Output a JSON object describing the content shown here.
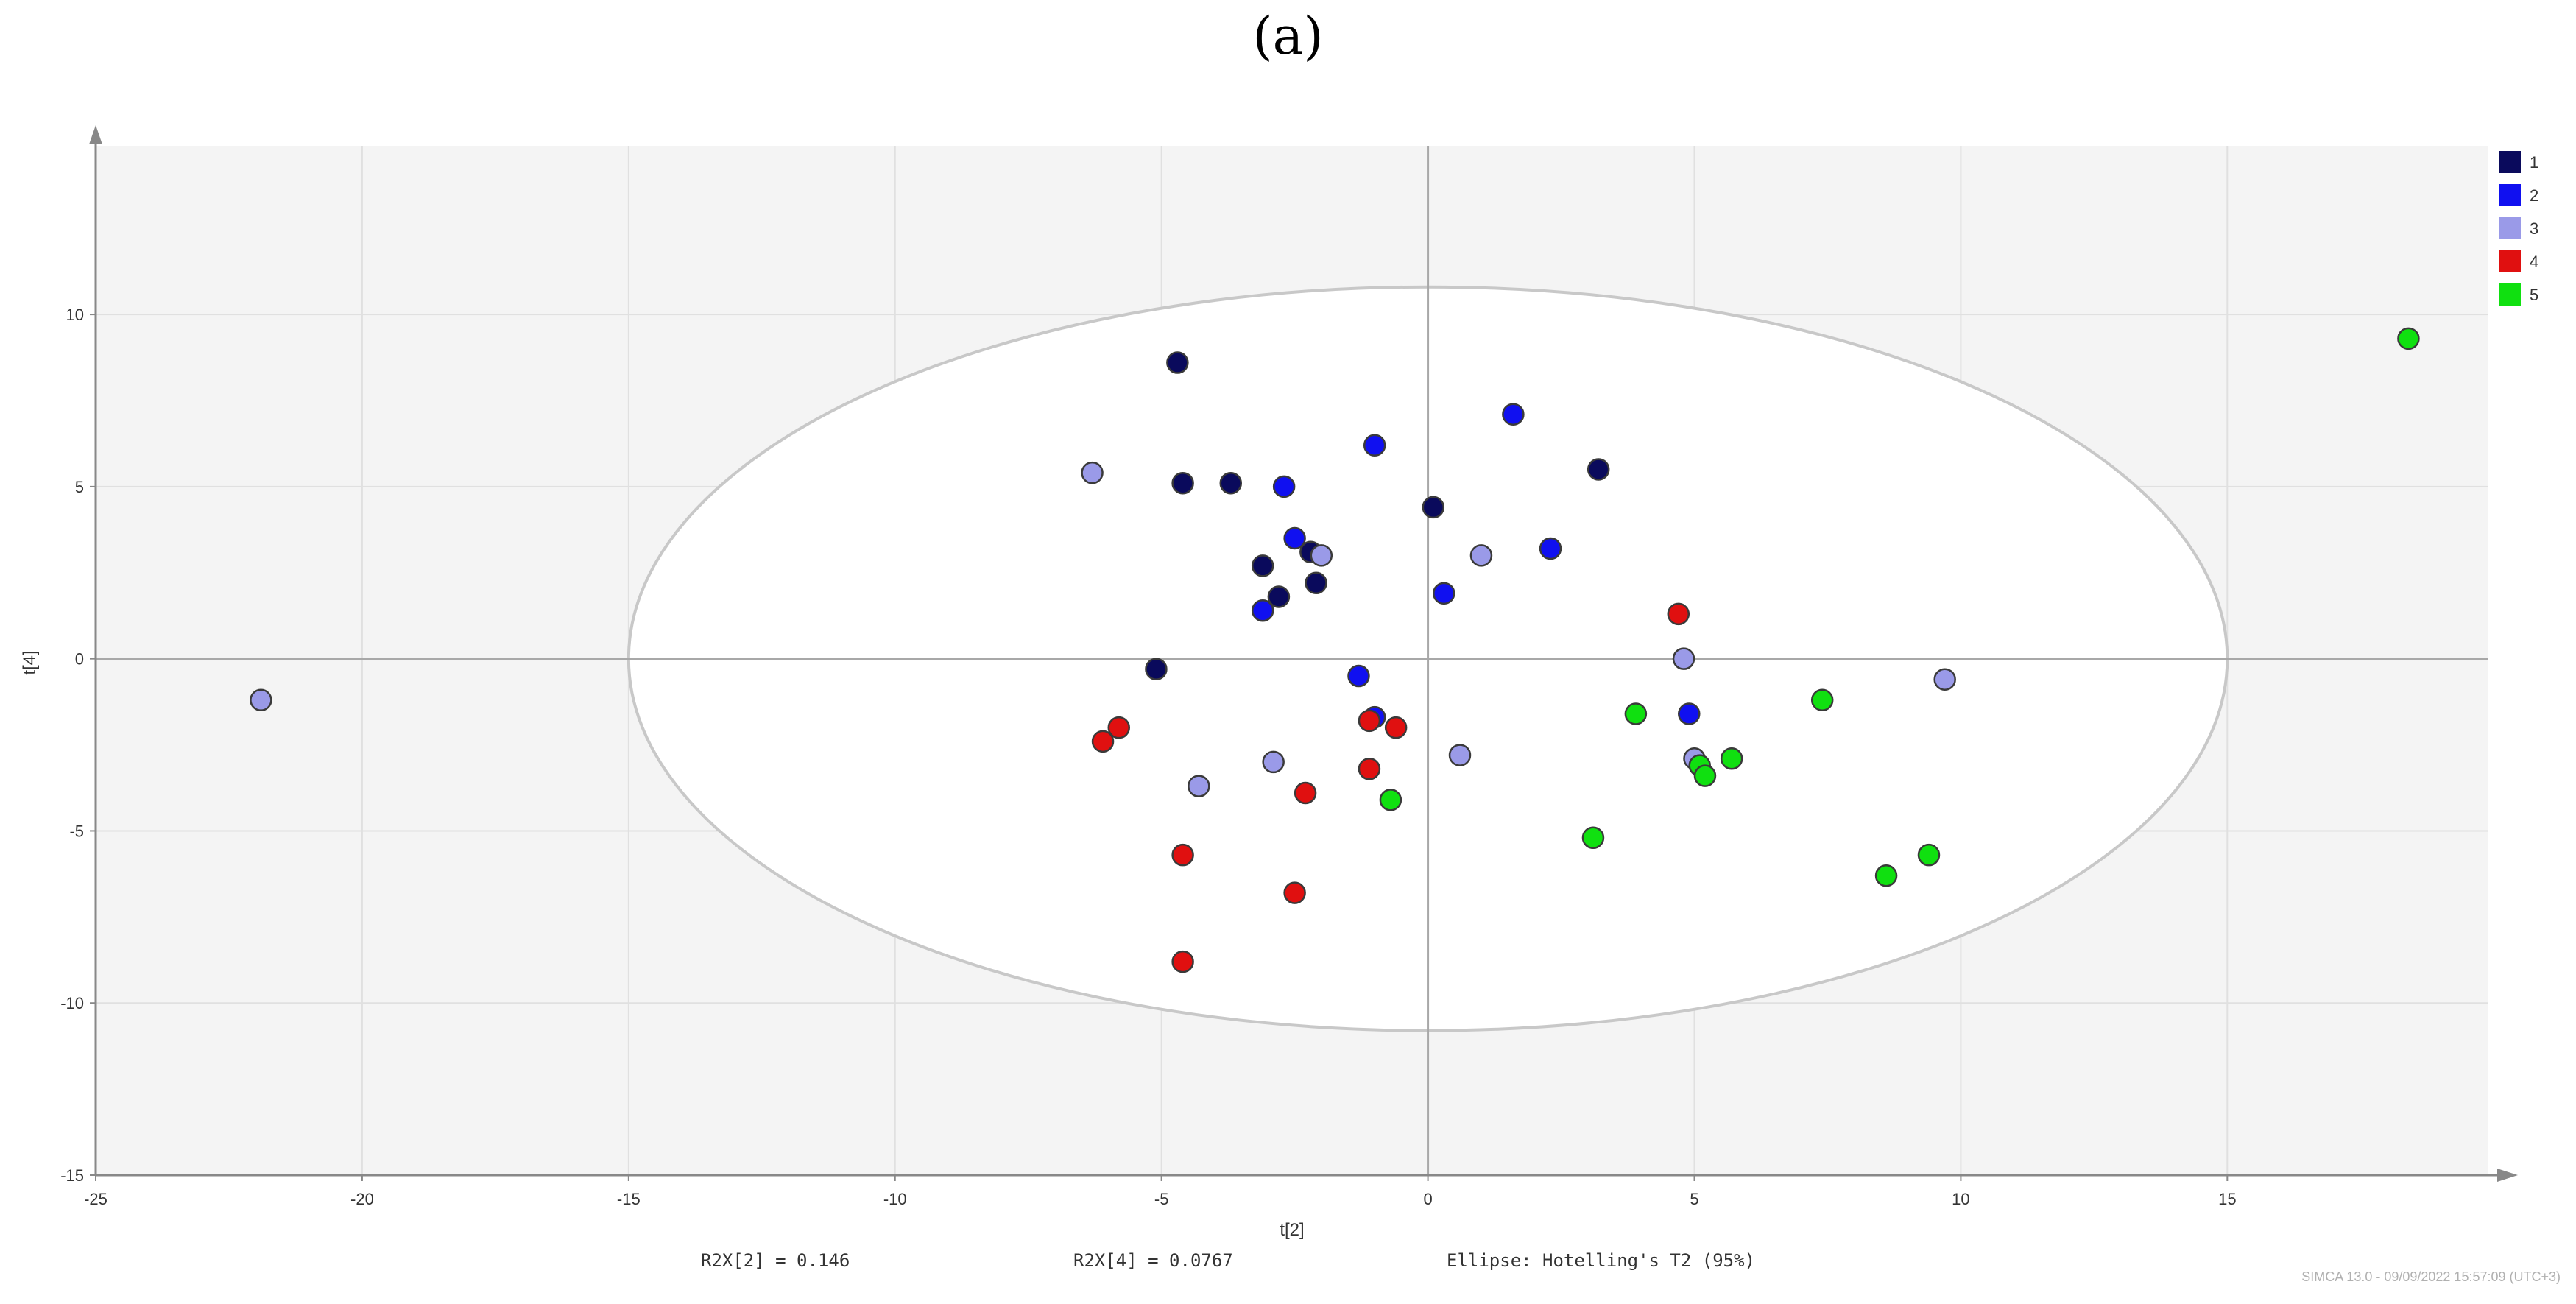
{
  "figure_label": "(a)",
  "chart_data": {
    "type": "scatter",
    "xlabel": "t[2]",
    "ylabel": "t[4]",
    "xlim": [
      -25,
      19.9
    ],
    "ylim": [
      -15,
      14.9
    ],
    "xticks": [
      -25,
      -20,
      -15,
      -10,
      -5,
      0,
      5,
      10,
      15
    ],
    "yticks": [
      -15,
      -10,
      -5,
      0,
      5,
      10
    ],
    "grid": true,
    "legend_position": "top-right",
    "ellipse": {
      "label": "Ellipse: Hotelling's T2 (95%)",
      "center": [
        0,
        0
      ],
      "rx": 15,
      "ry": 10.8
    },
    "stats": [
      "R2X[2] = 0.146",
      "R2X[4] = 0.0767",
      "Ellipse: Hotelling's T2 (95%)"
    ],
    "footer": "SIMCA 13.0 - 09/09/2022 15:57:09 (UTC+3)",
    "series": [
      {
        "name": "1",
        "color": "#0a0a5c",
        "points": [
          [
            -4.7,
            8.6
          ],
          [
            -4.6,
            5.1
          ],
          [
            -3.7,
            5.1
          ],
          [
            -3.1,
            2.7
          ],
          [
            -2.8,
            1.8
          ],
          [
            -2.2,
            3.1
          ],
          [
            -2.1,
            2.2
          ],
          [
            0.1,
            4.4
          ],
          [
            3.2,
            5.5
          ],
          [
            -5.1,
            -0.3
          ]
        ]
      },
      {
        "name": "2",
        "color": "#1010f0",
        "points": [
          [
            -1.0,
            6.2
          ],
          [
            -2.7,
            5.0
          ],
          [
            -2.5,
            3.5
          ],
          [
            -3.1,
            1.4
          ],
          [
            1.6,
            7.1
          ],
          [
            2.3,
            3.2
          ],
          [
            0.3,
            1.9
          ],
          [
            -1.3,
            -0.5
          ],
          [
            -1.0,
            -1.7
          ],
          [
            4.9,
            -1.6
          ]
        ]
      },
      {
        "name": "3",
        "color": "#9a9ae8",
        "points": [
          [
            -21.9,
            -1.2
          ],
          [
            -6.3,
            5.4
          ],
          [
            -2.0,
            3.0
          ],
          [
            1.0,
            3.0
          ],
          [
            4.8,
            0.0
          ],
          [
            9.7,
            -0.6
          ],
          [
            0.6,
            -2.8
          ],
          [
            -2.9,
            -3.0
          ],
          [
            -4.3,
            -3.7
          ],
          [
            5.0,
            -2.9
          ]
        ]
      },
      {
        "name": "4",
        "color": "#e01010",
        "points": [
          [
            4.7,
            1.3
          ],
          [
            -5.8,
            -2.0
          ],
          [
            -6.1,
            -2.4
          ],
          [
            -1.1,
            -1.8
          ],
          [
            -0.6,
            -2.0
          ],
          [
            -1.1,
            -3.2
          ],
          [
            -2.3,
            -3.9
          ],
          [
            -4.6,
            -5.7
          ],
          [
            -2.5,
            -6.8
          ],
          [
            -4.6,
            -8.8
          ]
        ]
      },
      {
        "name": "5",
        "color": "#10e010",
        "points": [
          [
            18.4,
            9.3
          ],
          [
            7.4,
            -1.2
          ],
          [
            3.9,
            -1.6
          ],
          [
            5.1,
            -3.1
          ],
          [
            5.2,
            -3.4
          ],
          [
            5.7,
            -2.9
          ],
          [
            -0.7,
            -4.1
          ],
          [
            3.1,
            -5.2
          ],
          [
            8.6,
            -6.3
          ],
          [
            9.4,
            -5.7
          ]
        ]
      }
    ]
  }
}
